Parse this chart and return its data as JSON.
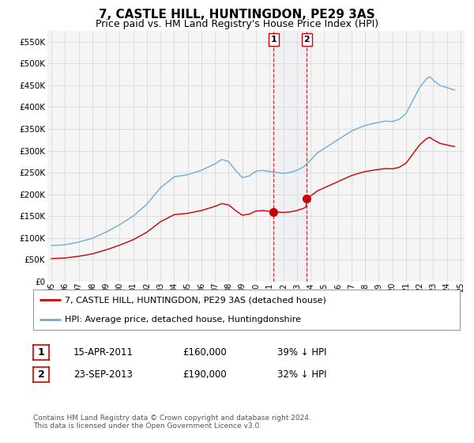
{
  "title": "7, CASTLE HILL, HUNTINGDON, PE29 3AS",
  "subtitle": "Price paid vs. HM Land Registry's House Price Index (HPI)",
  "title_fontsize": 11,
  "subtitle_fontsize": 9,
  "hpi_color": "#6baed6",
  "property_color": "#cc0000",
  "dashed_line_color": "#cc0000",
  "sale1_year": 2011.29,
  "sale1_price": 160000,
  "sale1_label": "1",
  "sale2_year": 2013.73,
  "sale2_price": 190000,
  "sale2_label": "2",
  "ylim": [
    0,
    575000
  ],
  "yticks": [
    0,
    50000,
    100000,
    150000,
    200000,
    250000,
    300000,
    350000,
    400000,
    450000,
    500000,
    550000
  ],
  "ytick_labels": [
    "£0",
    "£50K",
    "£100K",
    "£150K",
    "£200K",
    "£250K",
    "£300K",
    "£350K",
    "£400K",
    "£450K",
    "£500K",
    "£550K"
  ],
  "xlim_start": 1994.7,
  "xlim_end": 2025.3,
  "xticks": [
    1995,
    1996,
    1997,
    1998,
    1999,
    2000,
    2001,
    2002,
    2003,
    2004,
    2005,
    2006,
    2007,
    2008,
    2009,
    2010,
    2011,
    2012,
    2013,
    2014,
    2015,
    2016,
    2017,
    2018,
    2019,
    2020,
    2021,
    2022,
    2023,
    2024,
    2025
  ],
  "legend_label_property": "7, CASTLE HILL, HUNTINGDON, PE29 3AS (detached house)",
  "legend_label_hpi": "HPI: Average price, detached house, Huntingdonshire",
  "annotation1_date": "15-APR-2011",
  "annotation1_price": "£160,000",
  "annotation1_pct": "39% ↓ HPI",
  "annotation2_date": "23-SEP-2013",
  "annotation2_price": "£190,000",
  "annotation2_pct": "32% ↓ HPI",
  "footer": "Contains HM Land Registry data © Crown copyright and database right 2024.\nThis data is licensed under the Open Government Licence v3.0.",
  "bg_color": "#ffffff",
  "plot_bg_color": "#f5f5f5",
  "grid_color": "#d8d8d8"
}
